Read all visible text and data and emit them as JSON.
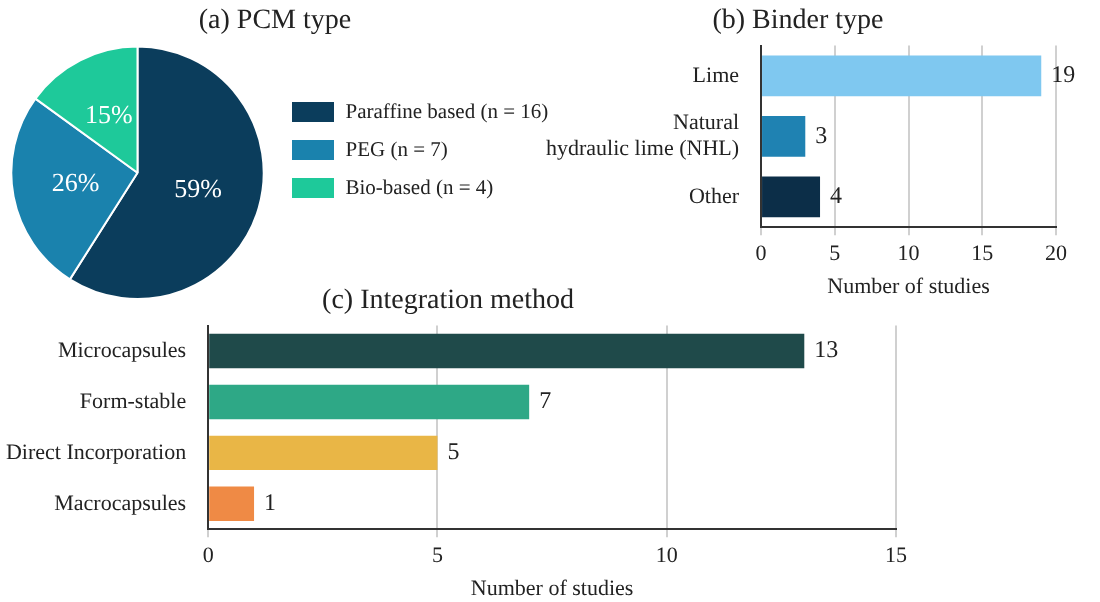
{
  "chart_data": [
    {
      "type": "pie",
      "title": "(a) PCM type",
      "categories": [
        "Paraffine based (n = 16)",
        "PEG (n = 7)",
        "Bio-based (n = 4)"
      ],
      "values": [
        59,
        26,
        15
      ],
      "colors": [
        "#0b3d5c",
        "#1a82ad",
        "#1ec99a"
      ],
      "value_labels": [
        "59%",
        "26%",
        "15%"
      ],
      "legend": "right"
    },
    {
      "type": "bar",
      "orientation": "horizontal",
      "title": "(b) Binder type",
      "xlabel": "Number of studies",
      "categories": [
        "Lime",
        "Natural hydraulic lime (NHL)",
        "Other"
      ],
      "values": [
        19,
        3,
        4
      ],
      "colors": [
        "#7fc8f0",
        "#1f82b2",
        "#0c2e48"
      ],
      "xlim": [
        0,
        20
      ],
      "xticks": [
        0,
        5,
        10,
        15,
        20
      ],
      "grid": "x",
      "data_labels": true
    },
    {
      "type": "bar",
      "orientation": "horizontal",
      "title": "(c) Integration method",
      "xlabel": "Number of studies",
      "categories": [
        "Microcapsules",
        "Form-stable",
        "Direct Incorporation",
        "Macrocapsules"
      ],
      "values": [
        13,
        7,
        5,
        1
      ],
      "colors": [
        "#1f4a4a",
        "#2ea886",
        "#e9b646",
        "#ef8a45"
      ],
      "xlim": [
        0,
        15
      ],
      "xticks": [
        0,
        5,
        10,
        15
      ],
      "grid": "x",
      "data_labels": true
    }
  ]
}
